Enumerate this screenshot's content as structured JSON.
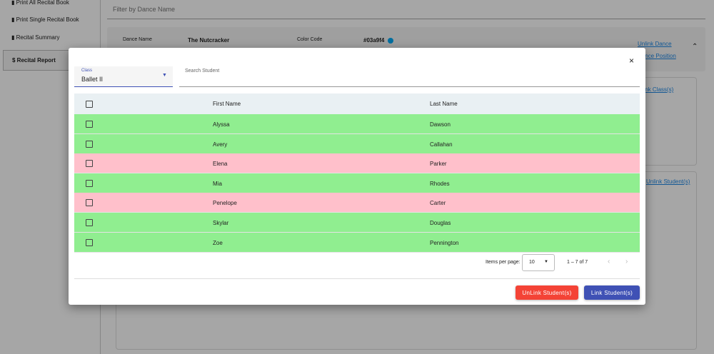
{
  "sidebar": {
    "items": [
      "Print All Recital Book",
      "Print Single Recital Book",
      "Recital Summary",
      "$ Recital Report"
    ]
  },
  "background": {
    "filter_placeholder": "Filter by Dance Name",
    "dance_name_label": "Dance Name",
    "dance_name": "The Nutcracker",
    "color_code_label": "Color Code",
    "color_code": "#03a9f4",
    "unlink_dance": "Unlink Dance",
    "dance_position": "Dance Position",
    "link_class": "Link Class(s)",
    "unlink_student": "Unlink Student(s)"
  },
  "modal": {
    "close": "×",
    "class_label": "Class",
    "class_value": "Ballet II",
    "search_placeholder": "Search Student",
    "table": {
      "headers": [
        "First Name",
        "Last Name"
      ],
      "rows": [
        {
          "first": "Alyssa",
          "last": "Dawson",
          "color": "#90ee90"
        },
        {
          "first": "Avery",
          "last": "Callahan",
          "color": "#90ee90"
        },
        {
          "first": "Elena",
          "last": "Parker",
          "color": "#ffc0cb"
        },
        {
          "first": "Mia",
          "last": "Rhodes",
          "color": "#90ee90"
        },
        {
          "first": "Penelope",
          "last": "Carter",
          "color": "#ffc0cb"
        },
        {
          "first": "Skylar",
          "last": "Douglas",
          "color": "#90ee90"
        },
        {
          "first": "Zoe",
          "last": "Pennington",
          "color": "#90ee90"
        }
      ]
    },
    "paginator": {
      "items_per_page_label": "Items per page:",
      "page_size": "10",
      "range": "1 – 7 of 7"
    },
    "buttons": {
      "unlink": "UnLink Student(s)",
      "link": "Link Student(s)"
    }
  }
}
